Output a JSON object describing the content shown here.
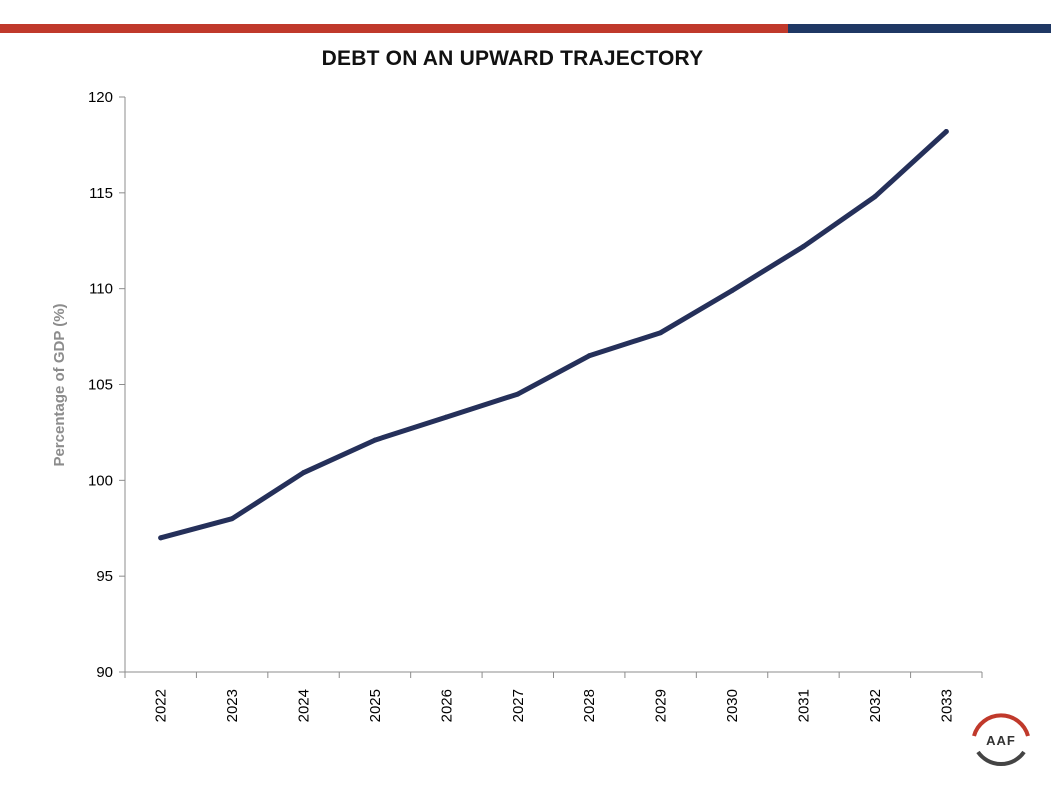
{
  "branding": {
    "accent_red": "#c0392b",
    "accent_blue": "#1f3864",
    "logo_text": "AAF"
  },
  "chart_data": {
    "type": "line",
    "title": "DEBT ON AN UPWARD TRAJECTORY",
    "xlabel": "",
    "ylabel": "Percentage of GDP (%)",
    "ylim": [
      90,
      120
    ],
    "yticks": [
      90,
      95,
      100,
      105,
      110,
      115,
      120
    ],
    "categories": [
      "2022",
      "2023",
      "2024",
      "2025",
      "2026",
      "2027",
      "2028",
      "2029",
      "2030",
      "2031",
      "2032",
      "2033"
    ],
    "series": [
      {
        "values": [
          97.0,
          98.0,
          100.4,
          102.1,
          103.3,
          104.5,
          106.5,
          107.7,
          109.9,
          112.2,
          114.8,
          118.2
        ],
        "color": "#25305a"
      }
    ],
    "grid": false,
    "legend": "none"
  }
}
